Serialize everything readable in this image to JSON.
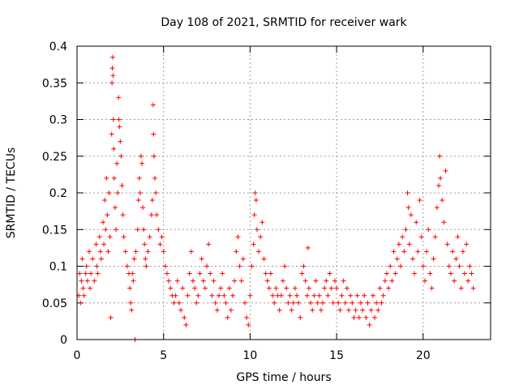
{
  "chart_data": {
    "type": "scatter",
    "title": "Day 108 of 2021, SRMTID for receiver wark",
    "xlabel": "GPS time / hours",
    "ylabel": "SRMTID / TECUs",
    "xlim": [
      0,
      23.9
    ],
    "ylim": [
      0,
      0.4
    ],
    "x_ticks": [
      0,
      5,
      10,
      15,
      20
    ],
    "x_tick_labels": [
      "0",
      "5",
      "10",
      "15",
      "20"
    ],
    "y_ticks": [
      0,
      0.05,
      0.1,
      0.15,
      0.2,
      0.25,
      0.3,
      0.35,
      0.4
    ],
    "y_tick_labels": [
      "0",
      "0.05",
      "0.1",
      "0.15",
      "0.2",
      "0.25",
      "0.3",
      "0.35",
      "0.4"
    ],
    "grid": true,
    "marker": "plus",
    "color": "#ff0000",
    "series": [
      {
        "name": "SRMTID",
        "points": [
          [
            0.1,
            0.06
          ],
          [
            0.15,
            0.09
          ],
          [
            0.2,
            0.05
          ],
          [
            0.25,
            0.08
          ],
          [
            0.3,
            0.11
          ],
          [
            0.35,
            0.07
          ],
          [
            0.4,
            0.06
          ],
          [
            0.5,
            0.09
          ],
          [
            0.55,
            0.1
          ],
          [
            0.6,
            0.08
          ],
          [
            0.7,
            0.12
          ],
          [
            0.75,
            0.07
          ],
          [
            0.8,
            0.09
          ],
          [
            0.9,
            0.11
          ],
          [
            1.0,
            0.08
          ],
          [
            1.1,
            0.13
          ],
          [
            1.15,
            0.1
          ],
          [
            1.2,
            0.09
          ],
          [
            1.3,
            0.14
          ],
          [
            1.35,
            0.12
          ],
          [
            1.4,
            0.11
          ],
          [
            1.5,
            0.16
          ],
          [
            1.55,
            0.13
          ],
          [
            1.6,
            0.19
          ],
          [
            1.65,
            0.15
          ],
          [
            1.7,
            0.22
          ],
          [
            1.75,
            0.17
          ],
          [
            1.8,
            0.12
          ],
          [
            1.85,
            0.2
          ],
          [
            1.9,
            0.14
          ],
          [
            1.95,
            0.03
          ],
          [
            2.0,
            0.28
          ],
          [
            2.02,
            0.35
          ],
          [
            2.04,
            0.37
          ],
          [
            2.06,
            0.385
          ],
          [
            2.08,
            0.36
          ],
          [
            2.1,
            0.3
          ],
          [
            2.12,
            0.26
          ],
          [
            2.15,
            0.22
          ],
          [
            2.2,
            0.18
          ],
          [
            2.25,
            0.15
          ],
          [
            2.3,
            0.24
          ],
          [
            2.35,
            0.2
          ],
          [
            2.4,
            0.33
          ],
          [
            2.42,
            0.3
          ],
          [
            2.45,
            0.29
          ],
          [
            2.5,
            0.27
          ],
          [
            2.55,
            0.25
          ],
          [
            2.6,
            0.21
          ],
          [
            2.65,
            0.17
          ],
          [
            2.7,
            0.14
          ],
          [
            2.8,
            0.12
          ],
          [
            2.9,
            0.1
          ],
          [
            3.0,
            0.09
          ],
          [
            3.05,
            0.07
          ],
          [
            3.1,
            0.05
          ],
          [
            3.15,
            0.04
          ],
          [
            3.2,
            0.09
          ],
          [
            3.25,
            0.08
          ],
          [
            3.3,
            0.11
          ],
          [
            3.35,
            0.0
          ],
          [
            3.4,
            0.12
          ],
          [
            3.5,
            0.15
          ],
          [
            3.55,
            0.19
          ],
          [
            3.6,
            0.22
          ],
          [
            3.65,
            0.2
          ],
          [
            3.7,
            0.25
          ],
          [
            3.75,
            0.24
          ],
          [
            3.8,
            0.18
          ],
          [
            3.85,
            0.15
          ],
          [
            3.9,
            0.13
          ],
          [
            3.95,
            0.11
          ],
          [
            4.0,
            0.1
          ],
          [
            4.1,
            0.12
          ],
          [
            4.2,
            0.14
          ],
          [
            4.3,
            0.17
          ],
          [
            4.35,
            0.19
          ],
          [
            4.4,
            0.32
          ],
          [
            4.42,
            0.28
          ],
          [
            4.45,
            0.25
          ],
          [
            4.5,
            0.22
          ],
          [
            4.55,
            0.2
          ],
          [
            4.6,
            0.17
          ],
          [
            4.7,
            0.15
          ],
          [
            4.8,
            0.13
          ],
          [
            4.9,
            0.14
          ],
          [
            5.0,
            0.12
          ],
          [
            5.1,
            0.1
          ],
          [
            5.2,
            0.09
          ],
          [
            5.3,
            0.08
          ],
          [
            5.4,
            0.07
          ],
          [
            5.5,
            0.06
          ],
          [
            5.6,
            0.05
          ],
          [
            5.7,
            0.06
          ],
          [
            5.8,
            0.08
          ],
          [
            5.9,
            0.05
          ],
          [
            6.0,
            0.04
          ],
          [
            6.1,
            0.07
          ],
          [
            6.2,
            0.03
          ],
          [
            6.3,
            0.02
          ],
          [
            6.4,
            0.06
          ],
          [
            6.5,
            0.09
          ],
          [
            6.6,
            0.12
          ],
          [
            6.7,
            0.08
          ],
          [
            6.8,
            0.07
          ],
          [
            6.9,
            0.05
          ],
          [
            7.0,
            0.06
          ],
          [
            7.1,
            0.09
          ],
          [
            7.2,
            0.11
          ],
          [
            7.3,
            0.08
          ],
          [
            7.4,
            0.07
          ],
          [
            7.5,
            0.1
          ],
          [
            7.6,
            0.13
          ],
          [
            7.7,
            0.09
          ],
          [
            7.8,
            0.06
          ],
          [
            7.9,
            0.08
          ],
          [
            8.0,
            0.05
          ],
          [
            8.1,
            0.04
          ],
          [
            8.2,
            0.06
          ],
          [
            8.3,
            0.07
          ],
          [
            8.4,
            0.09
          ],
          [
            8.5,
            0.06
          ],
          [
            8.6,
            0.05
          ],
          [
            8.7,
            0.03
          ],
          [
            8.8,
            0.07
          ],
          [
            8.9,
            0.04
          ],
          [
            9.0,
            0.06
          ],
          [
            9.1,
            0.08
          ],
          [
            9.2,
            0.12
          ],
          [
            9.3,
            0.14
          ],
          [
            9.4,
            0.1
          ],
          [
            9.5,
            0.08
          ],
          [
            9.6,
            0.11
          ],
          [
            9.7,
            0.05
          ],
          [
            9.8,
            0.03
          ],
          [
            9.9,
            0.02
          ],
          [
            10.0,
            0.06
          ],
          [
            10.1,
            0.1
          ],
          [
            10.2,
            0.13
          ],
          [
            10.25,
            0.17
          ],
          [
            10.3,
            0.2
          ],
          [
            10.35,
            0.19
          ],
          [
            10.4,
            0.15
          ],
          [
            10.5,
            0.12
          ],
          [
            10.6,
            0.14
          ],
          [
            10.7,
            0.16
          ],
          [
            10.8,
            0.11
          ],
          [
            10.9,
            0.09
          ],
          [
            11.0,
            0.08
          ],
          [
            11.1,
            0.07
          ],
          [
            11.2,
            0.09
          ],
          [
            11.3,
            0.06
          ],
          [
            11.4,
            0.05
          ],
          [
            11.5,
            0.07
          ],
          [
            11.6,
            0.06
          ],
          [
            11.7,
            0.04
          ],
          [
            11.8,
            0.06
          ],
          [
            11.9,
            0.08
          ],
          [
            12.0,
            0.1
          ],
          [
            12.1,
            0.07
          ],
          [
            12.2,
            0.05
          ],
          [
            12.3,
            0.06
          ],
          [
            12.4,
            0.04
          ],
          [
            12.5,
            0.05
          ],
          [
            12.6,
            0.07
          ],
          [
            12.7,
            0.06
          ],
          [
            12.8,
            0.05
          ],
          [
            12.9,
            0.03
          ],
          [
            13.0,
            0.09
          ],
          [
            13.1,
            0.1
          ],
          [
            13.2,
            0.08
          ],
          [
            13.3,
            0.06
          ],
          [
            13.35,
            0.125
          ],
          [
            13.4,
            0.07
          ],
          [
            13.5,
            0.05
          ],
          [
            13.6,
            0.04
          ],
          [
            13.7,
            0.06
          ],
          [
            13.8,
            0.08
          ],
          [
            13.9,
            0.05
          ],
          [
            14.0,
            0.06
          ],
          [
            14.1,
            0.04
          ],
          [
            14.2,
            0.05
          ],
          [
            14.3,
            0.07
          ],
          [
            14.4,
            0.08
          ],
          [
            14.5,
            0.06
          ],
          [
            14.6,
            0.09
          ],
          [
            14.7,
            0.07
          ],
          [
            14.8,
            0.05
          ],
          [
            14.9,
            0.08
          ],
          [
            15.0,
            0.07
          ],
          [
            15.1,
            0.05
          ],
          [
            15.2,
            0.04
          ],
          [
            15.3,
            0.06
          ],
          [
            15.4,
            0.08
          ],
          [
            15.5,
            0.05
          ],
          [
            15.6,
            0.07
          ],
          [
            15.7,
            0.04
          ],
          [
            15.8,
            0.06
          ],
          [
            15.9,
            0.05
          ],
          [
            16.0,
            0.03
          ],
          [
            16.1,
            0.04
          ],
          [
            16.2,
            0.06
          ],
          [
            16.3,
            0.03
          ],
          [
            16.4,
            0.05
          ],
          [
            16.5,
            0.04
          ],
          [
            16.6,
            0.06
          ],
          [
            16.7,
            0.03
          ],
          [
            16.8,
            0.05
          ],
          [
            16.9,
            0.02
          ],
          [
            17.0,
            0.04
          ],
          [
            17.1,
            0.06
          ],
          [
            17.2,
            0.03
          ],
          [
            17.3,
            0.05
          ],
          [
            17.4,
            0.04
          ],
          [
            17.5,
            0.07
          ],
          [
            17.6,
            0.05
          ],
          [
            17.7,
            0.06
          ],
          [
            17.8,
            0.08
          ],
          [
            17.9,
            0.09
          ],
          [
            18.0,
            0.07
          ],
          [
            18.1,
            0.1
          ],
          [
            18.2,
            0.08
          ],
          [
            18.3,
            0.12
          ],
          [
            18.4,
            0.09
          ],
          [
            18.5,
            0.11
          ],
          [
            18.6,
            0.13
          ],
          [
            18.7,
            0.1
          ],
          [
            18.8,
            0.14
          ],
          [
            18.9,
            0.12
          ],
          [
            19.0,
            0.15
          ],
          [
            19.1,
            0.2
          ],
          [
            19.15,
            0.18
          ],
          [
            19.2,
            0.13
          ],
          [
            19.3,
            0.17
          ],
          [
            19.4,
            0.11
          ],
          [
            19.5,
            0.09
          ],
          [
            19.6,
            0.16
          ],
          [
            19.7,
            0.12
          ],
          [
            19.8,
            0.19
          ],
          [
            19.9,
            0.14
          ],
          [
            20.0,
            0.1
          ],
          [
            20.1,
            0.08
          ],
          [
            20.2,
            0.12
          ],
          [
            20.3,
            0.15
          ],
          [
            20.4,
            0.09
          ],
          [
            20.5,
            0.07
          ],
          [
            20.6,
            0.11
          ],
          [
            20.7,
            0.14
          ],
          [
            20.8,
            0.18
          ],
          [
            20.9,
            0.21
          ],
          [
            20.95,
            0.25
          ],
          [
            21.0,
            0.22
          ],
          [
            21.1,
            0.19
          ],
          [
            21.2,
            0.16
          ],
          [
            21.3,
            0.23
          ],
          [
            21.4,
            0.13
          ],
          [
            21.5,
            0.1
          ],
          [
            21.6,
            0.09
          ],
          [
            21.7,
            0.12
          ],
          [
            21.8,
            0.08
          ],
          [
            21.9,
            0.11
          ],
          [
            22.0,
            0.14
          ],
          [
            22.1,
            0.1
          ],
          [
            22.2,
            0.07
          ],
          [
            22.3,
            0.12
          ],
          [
            22.4,
            0.09
          ],
          [
            22.5,
            0.13
          ],
          [
            22.6,
            0.08
          ],
          [
            22.7,
            0.1
          ],
          [
            22.8,
            0.09
          ],
          [
            22.9,
            0.07
          ]
        ]
      }
    ]
  }
}
